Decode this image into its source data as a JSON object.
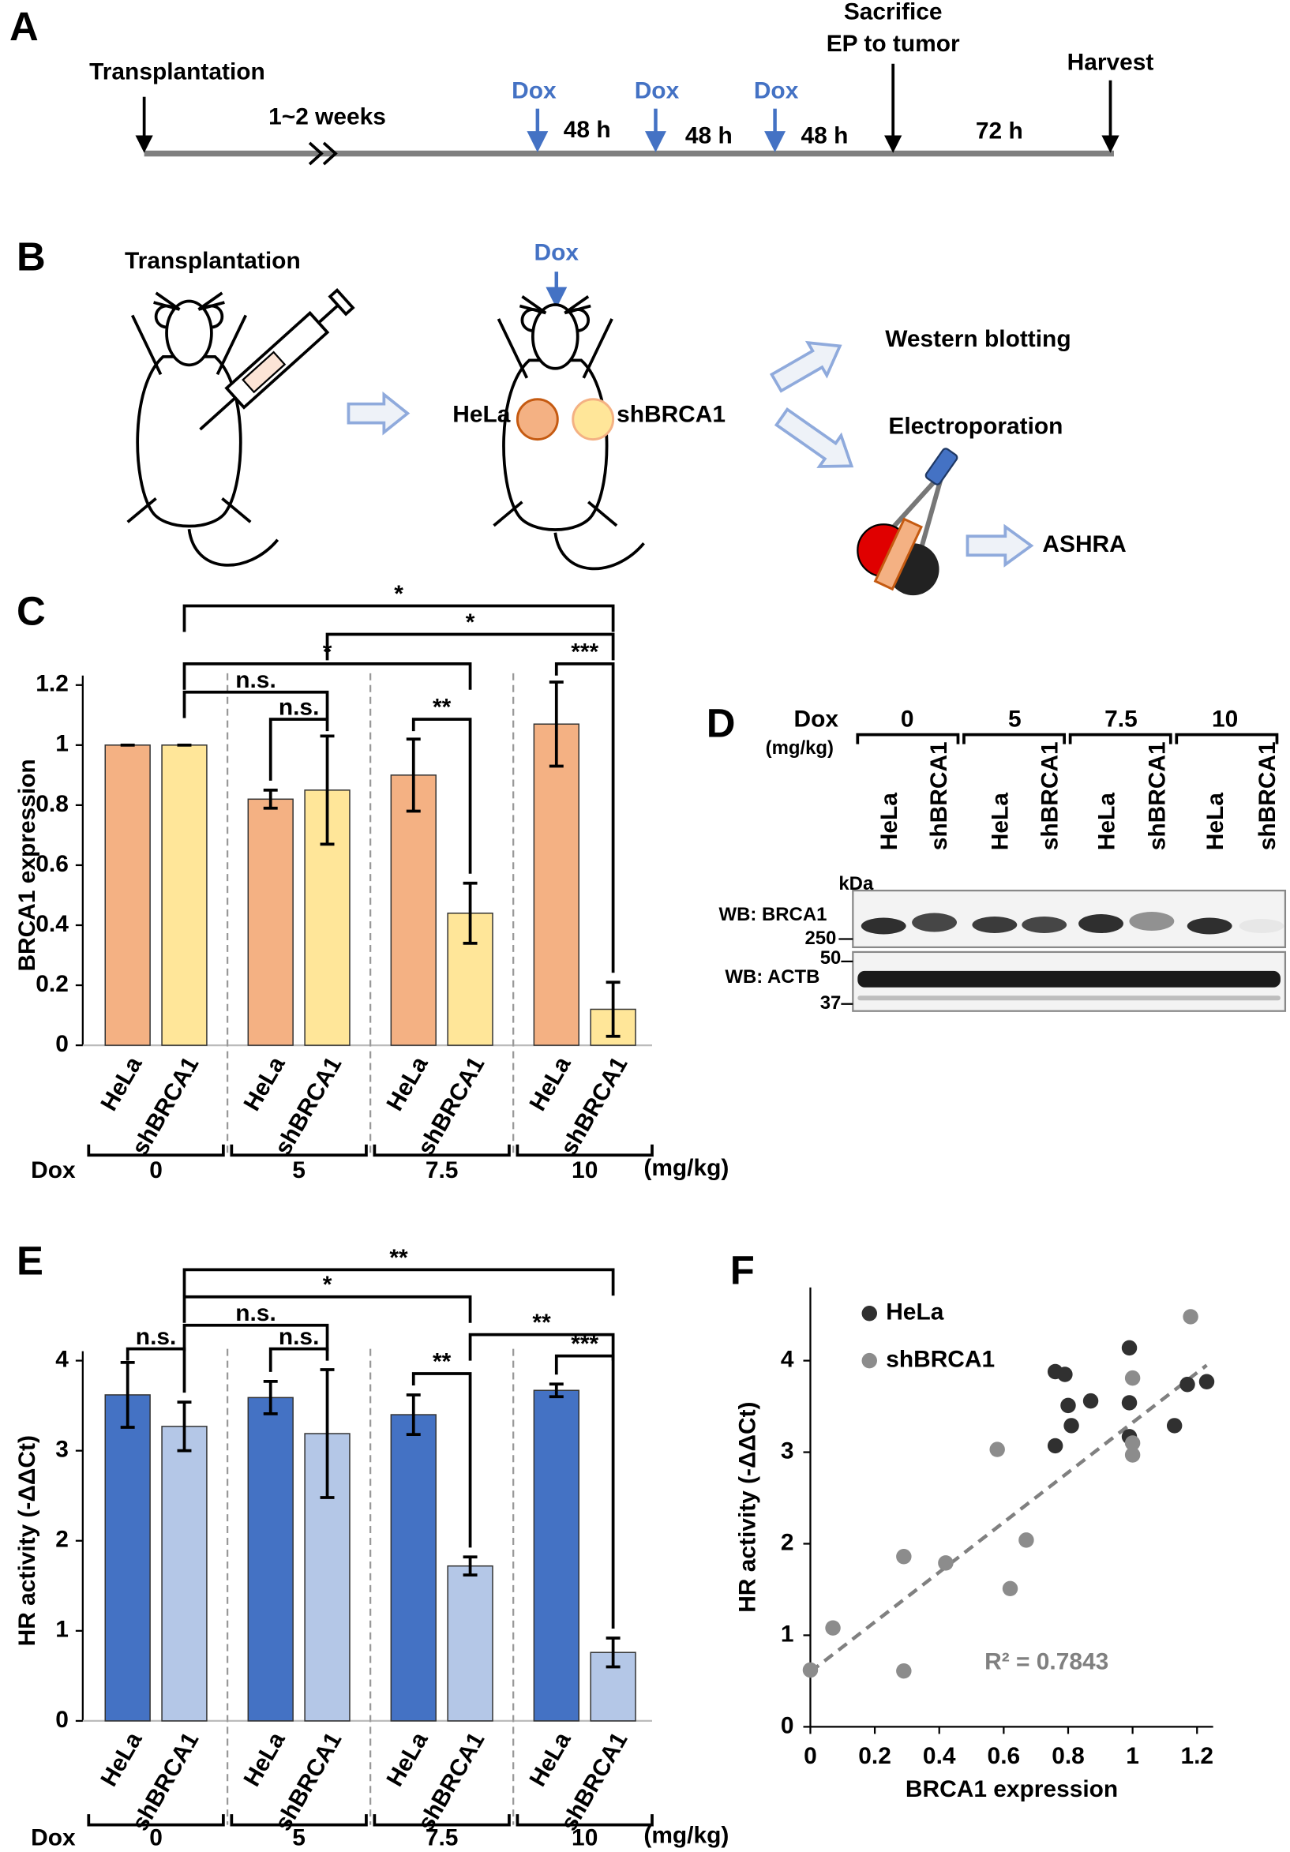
{
  "panel_a": {
    "letter": "A",
    "start": "Transplantation",
    "interval": "1~2 weeks",
    "dox": [
      "Dox",
      "Dox",
      "Dox"
    ],
    "durations": [
      "48 h",
      "48 h",
      "48 h",
      "72 h"
    ],
    "sacrifice": "Sacrifice",
    "sacrifice_note": "EP to tumor",
    "harvest": "Harvest"
  },
  "panel_b": {
    "letter": "B",
    "step": "Transplantation",
    "dox": "Dox",
    "tumors": [
      "HeLa",
      "shBRCA1"
    ],
    "analyses": [
      "Western blotting",
      "Electroporation",
      "ASHRA"
    ]
  },
  "panel_d": {
    "letter": "D",
    "dox": "Dox",
    "unit": "(mg/kg)",
    "doses": [
      "0",
      "5",
      "7.5",
      "10"
    ],
    "lanes": [
      "HeLa",
      "shBRCA1"
    ],
    "kda": "kDa",
    "blots": [
      {
        "label": "WB: BRCA1",
        "markers": [
          "250"
        ]
      },
      {
        "label": "WB: ACTB",
        "markers": [
          "50",
          "37"
        ]
      }
    ]
  },
  "chart_data": [
    {
      "type": "bar",
      "panel": "C",
      "ylabel": "BRCA1 expression",
      "group_label": "Dox",
      "unit": "(mg/kg)",
      "categories": [
        "0",
        "5",
        "7.5",
        "10"
      ],
      "series": [
        {
          "name": "HeLa",
          "color": "#f4b183",
          "values": [
            1,
            0.82,
            0.9,
            1.07
          ],
          "errors": [
            0,
            0.03,
            0.12,
            0.14
          ]
        },
        {
          "name": "shBRCA1",
          "color": "#ffe699",
          "values": [
            1,
            0.85,
            0.44,
            0.12
          ],
          "errors": [
            0,
            0.18,
            0.1,
            0.09
          ]
        }
      ],
      "ylim": [
        0,
        1.2
      ],
      "yticks": [
        0,
        0.2,
        0.4,
        0.6,
        0.8,
        1,
        1.2
      ],
      "significance": [
        {
          "label": "*",
          "from": [
            1,
            0
          ],
          "to": [
            1,
            3
          ]
        },
        {
          "label": "*",
          "from": [
            1,
            1
          ],
          "to": [
            1,
            3
          ]
        },
        {
          "label": "*",
          "from": [
            1,
            0
          ],
          "to": [
            1,
            2
          ]
        },
        {
          "label": "n.s.",
          "from": [
            1,
            0
          ],
          "to": [
            1,
            1
          ]
        },
        {
          "label": "n.s.",
          "from": [
            0,
            1
          ],
          "to": [
            1,
            1
          ]
        },
        {
          "label": "**",
          "from": [
            0,
            2
          ],
          "to": [
            1,
            2
          ]
        },
        {
          "label": "***",
          "from": [
            0,
            3
          ],
          "to": [
            1,
            3
          ]
        }
      ]
    },
    {
      "type": "bar",
      "panel": "E",
      "ylabel": "HR activity (-ΔΔCt)",
      "group_label": "Dox",
      "unit": "(mg/kg)",
      "categories": [
        "0",
        "5",
        "7.5",
        "10"
      ],
      "series": [
        {
          "name": "HeLa",
          "color": "#4472c4",
          "values": [
            3.62,
            3.59,
            3.4,
            3.67
          ],
          "errors": [
            0.36,
            0.18,
            0.22,
            0.07
          ]
        },
        {
          "name": "shBRCA1",
          "color": "#b4c7e7",
          "values": [
            3.27,
            3.19,
            1.72,
            0.76
          ],
          "errors": [
            0.27,
            0.71,
            0.1,
            0.16
          ]
        }
      ],
      "ylim": [
        0,
        4
      ],
      "yticks": [
        0,
        1,
        2,
        3,
        4
      ],
      "significance": [
        {
          "label": "**",
          "from": [
            1,
            0
          ],
          "to": [
            1,
            3
          ]
        },
        {
          "label": "*",
          "from": [
            1,
            0
          ],
          "to": [
            1,
            2
          ]
        },
        {
          "label": "n.s.",
          "from": [
            1,
            0
          ],
          "to": [
            1,
            1
          ]
        },
        {
          "label": "**",
          "from": [
            1,
            2
          ],
          "to": [
            1,
            3
          ]
        },
        {
          "label": "n.s.",
          "from": [
            0,
            0
          ],
          "to": [
            1,
            0
          ]
        },
        {
          "label": "n.s.",
          "from": [
            0,
            1
          ],
          "to": [
            1,
            1
          ]
        },
        {
          "label": "**",
          "from": [
            0,
            2
          ],
          "to": [
            1,
            2
          ]
        },
        {
          "label": "***",
          "from": [
            0,
            3
          ],
          "to": [
            1,
            3
          ]
        }
      ]
    },
    {
      "type": "scatter",
      "panel": "F",
      "xlabel": "BRCA1 expression",
      "ylabel": "HR activity (-ΔΔCt)",
      "series": [
        {
          "name": "HeLa",
          "color": "#303030",
          "x": [
            0.76,
            0.79,
            0.8,
            0.76,
            0.81,
            0.87,
            0.99,
            0.99,
            0.99,
            1.17,
            1.23,
            1.13
          ],
          "values": [
            3.88,
            3.85,
            3.51,
            3.07,
            3.29,
            3.56,
            4.14,
            3.54,
            3.17,
            3.74,
            3.77,
            3.29
          ]
        },
        {
          "name": "shBRCA1",
          "color": "#8c8c8c",
          "x": [
            0,
            0.07,
            0.29,
            0.29,
            0.42,
            0.58,
            0.62,
            0.67,
            1.18,
            1,
            1,
            1
          ],
          "values": [
            0.62,
            1.08,
            1.86,
            0.61,
            1.79,
            3.03,
            1.51,
            2.04,
            4.48,
            3.81,
            3.1,
            2.97
          ]
        }
      ],
      "xlim": [
        0,
        1.25
      ],
      "xticks": [
        0,
        0.2,
        0.4,
        0.6,
        0.8,
        1,
        1.2
      ],
      "ylim": [
        0,
        4.8
      ],
      "yticks": [
        0,
        1,
        2,
        3,
        4
      ],
      "legend": "top-left",
      "trendline": {
        "x": [
          0,
          1.23
        ],
        "y": [
          0.6,
          3.95
        ]
      },
      "annotation": "R² = 0.7843"
    }
  ]
}
